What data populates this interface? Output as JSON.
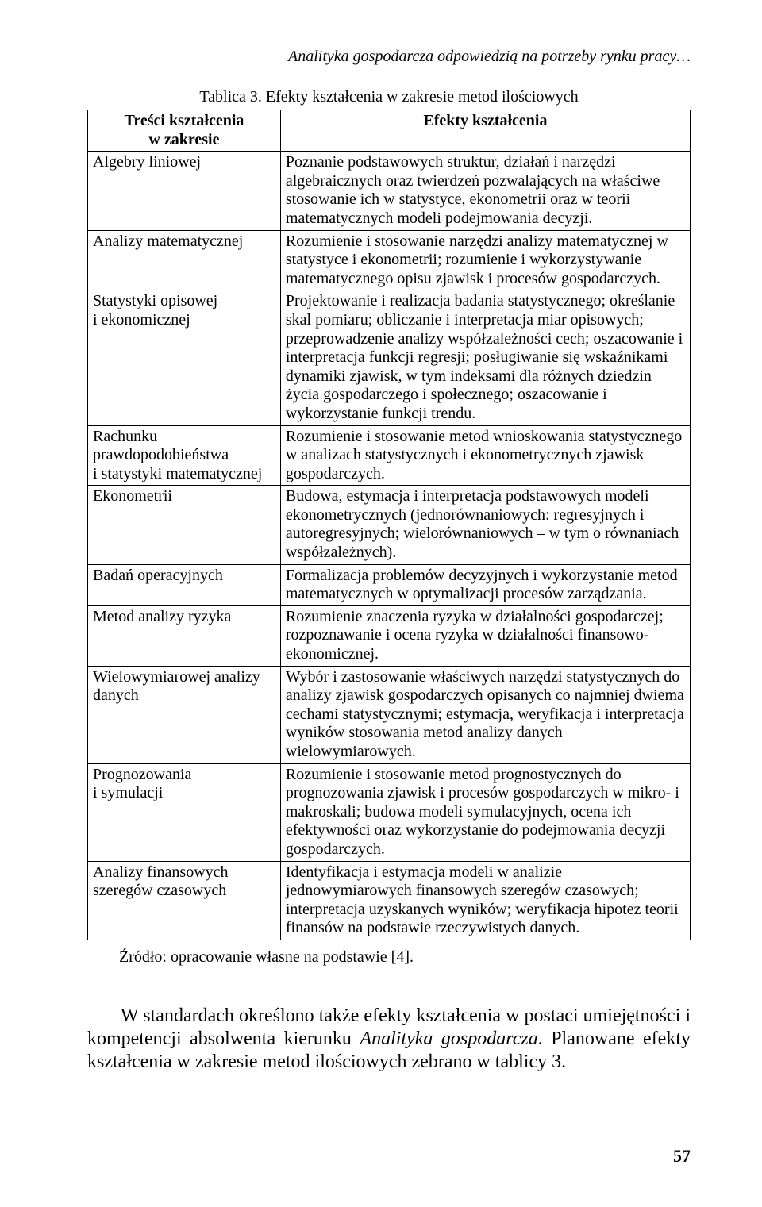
{
  "running_header": "Analityka gospodarcza odpowiedzią na potrzeby rynku pracy…",
  "table": {
    "caption": "Tablica 3. Efekty kształcenia w zakresie metod ilościowych",
    "header_left": "Treści kształcenia\nw zakresie",
    "header_right": "Efekty kształcenia",
    "rows": [
      {
        "left": "Algebry liniowej",
        "right": "Poznanie podstawowych struktur, działań i narzędzi algebraicznych oraz twierdzeń pozwalających na właściwe stosowanie ich w statystyce, ekonometrii oraz w teorii matematycznych modeli podejmowania decyzji."
      },
      {
        "left": "Analizy matematycznej",
        "right": "Rozumienie i stosowanie narzędzi analizy matematycznej w statystyce i ekonometrii; rozumienie i wykorzystywanie matematycznego opisu zjawisk i procesów gospodarczych."
      },
      {
        "left": "Statystyki opisowej\ni ekonomicznej",
        "right": "Projektowanie i realizacja badania statystycznego; określanie skal pomiaru; obliczanie i interpretacja miar opisowych; przeprowadzenie analizy współzależności cech; oszacowanie i interpretacja funkcji regresji; posługiwanie się wskaźnikami dynamiki zjawisk, w tym indeksami dla różnych dziedzin życia gospodarczego i społecznego; oszacowanie i wykorzystanie funkcji trendu."
      },
      {
        "left": "Rachunku prawdopodobieństwa\ni statystyki matematycznej",
        "right": "Rozumienie i stosowanie metod wnioskowania statystycznego w analizach statystycznych i ekonometrycznych zjawisk gospodarczych."
      },
      {
        "left": "Ekonometrii",
        "right": "Budowa, estymacja i interpretacja podstawowych modeli ekonometrycznych (jednorównaniowych: regresyjnych i autoregresyjnych; wielorównaniowych – w tym o równaniach współzależnych)."
      },
      {
        "left": "Badań operacyjnych",
        "right": "Formalizacja problemów decyzyjnych i wykorzystanie metod matematycznych w optymalizacji procesów zarządzania."
      },
      {
        "left": "Metod analizy ryzyka",
        "right": "Rozumienie znaczenia ryzyka w działalności gospodarczej; rozpoznawanie i ocena ryzyka w działalności finansowo-ekonomicznej."
      },
      {
        "left": "Wielowymiarowej analizy danych",
        "right": "Wybór i zastosowanie właściwych narzędzi statystycznych do analizy zjawisk gospodarczych opisanych co najmniej dwiema cechami statystycznymi; estymacja, weryfikacja i interpretacja wyników stosowania metod analizy danych wielowymiarowych."
      },
      {
        "left": "Prognozowania\ni symulacji",
        "right": "Rozumienie i stosowanie metod prognostycznych do prognozowania zjawisk i procesów gospodarczych w mikro- i makroskali; budowa modeli symulacyjnych, ocena ich efektywności oraz wykorzystanie do podejmowania decyzji gospodarczych."
      },
      {
        "left": "Analizy finansowych szeregów czasowych",
        "right": "Identyfikacja i estymacja modeli w analizie jednowymiarowych finansowych szeregów czasowych; interpretacja uzyskanych wyników; weryfikacja hipotez teorii finansów na podstawie rzeczywistych danych."
      }
    ]
  },
  "source_note": "Źródło: opracowanie własne na podstawie [4].",
  "paragraph": {
    "part1": "W standardach określono także efekty kształcenia w postaci umiejętności i kompetencji absolwenta kierunku ",
    "italic": "Analityka gospodarcza",
    "part2": ". Planowane efekty kształcenia w zakresie metod ilościowych zebrano w tablicy 3."
  },
  "page_number": "57"
}
